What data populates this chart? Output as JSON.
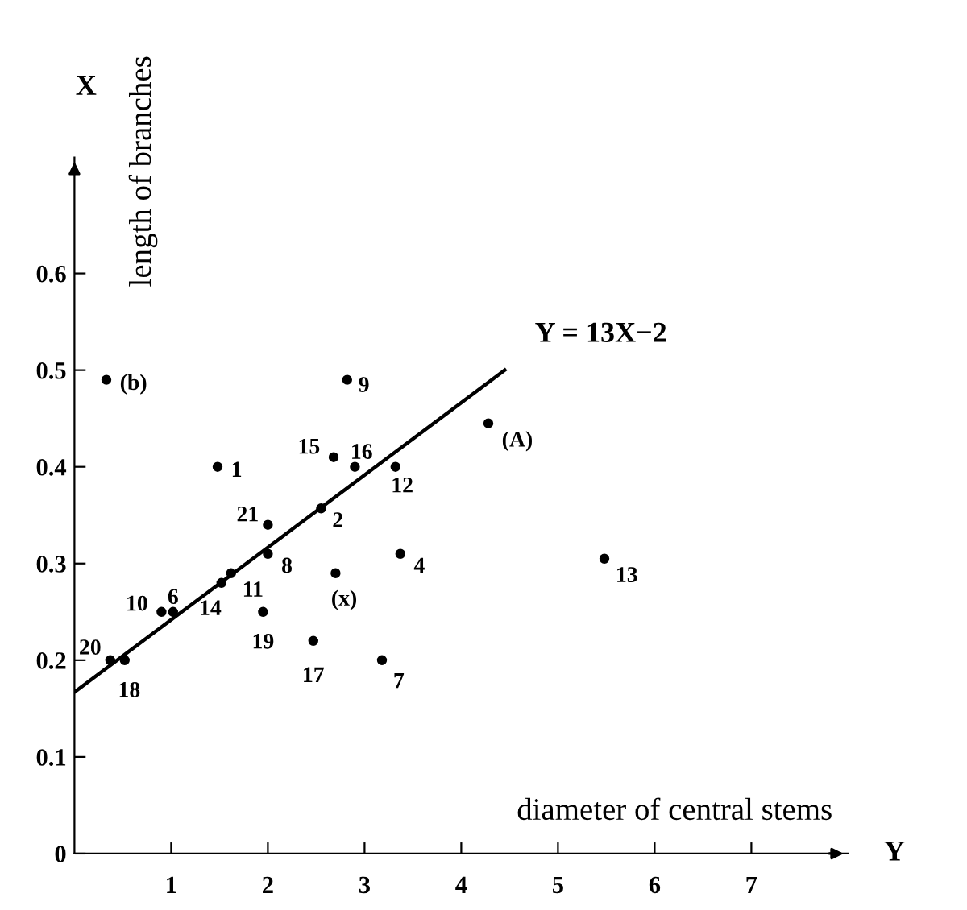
{
  "chart_data": {
    "type": "scatter",
    "xlabel": "diameter of central stems",
    "ylabel": "length of branches",
    "series": [
      {
        "color": "#000000",
        "marker": "circle",
        "x": [
          0.33,
          2.82,
          2.68,
          2.9,
          3.32,
          1.48,
          4.28,
          2.55,
          2.0,
          2.0,
          1.62,
          1.52,
          2.7,
          3.37,
          0.9,
          1.02,
          1.95,
          2.47,
          3.18,
          0.37,
          0.52,
          5.48
        ],
        "values": [
          0.49,
          0.49,
          0.41,
          0.4,
          0.4,
          0.4,
          0.445,
          0.357,
          0.34,
          0.31,
          0.29,
          0.28,
          0.29,
          0.31,
          0.25,
          0.25,
          0.25,
          0.22,
          0.2,
          0.2,
          0.2,
          0.305
        ]
      },
      {
        "type": "line",
        "color": "#000000",
        "line_style": "solid",
        "marker": "none",
        "x": [
          0,
          4.45
        ],
        "values": [
          0.167,
          0.5
        ]
      }
    ],
    "annotations": [
      {
        "text": "(b)",
        "x": 0.33,
        "y": 0.49
      },
      {
        "text": "9",
        "x": 2.82,
        "y": 0.49
      },
      {
        "text": "15",
        "x": 2.68,
        "y": 0.41
      },
      {
        "text": "16",
        "x": 2.9,
        "y": 0.4
      },
      {
        "text": "12",
        "x": 3.32,
        "y": 0.4
      },
      {
        "text": "1",
        "x": 1.48,
        "y": 0.4
      },
      {
        "text": "(A)",
        "x": 4.28,
        "y": 0.445
      },
      {
        "text": "2",
        "x": 2.55,
        "y": 0.357
      },
      {
        "text": "21",
        "x": 2.0,
        "y": 0.34
      },
      {
        "text": "8",
        "x": 2.0,
        "y": 0.31
      },
      {
        "text": "11",
        "x": 1.62,
        "y": 0.29
      },
      {
        "text": "14",
        "x": 1.52,
        "y": 0.28
      },
      {
        "text": "(x)",
        "x": 2.7,
        "y": 0.29
      },
      {
        "text": "4",
        "x": 3.37,
        "y": 0.31
      },
      {
        "text": "10",
        "x": 0.9,
        "y": 0.25
      },
      {
        "text": "6",
        "x": 1.02,
        "y": 0.25
      },
      {
        "text": "19",
        "x": 1.95,
        "y": 0.25
      },
      {
        "text": "17",
        "x": 2.47,
        "y": 0.22
      },
      {
        "text": "7",
        "x": 3.18,
        "y": 0.2
      },
      {
        "text": "20",
        "x": 0.37,
        "y": 0.2
      },
      {
        "text": "18",
        "x": 0.52,
        "y": 0.2
      },
      {
        "text": "13",
        "x": 5.48,
        "y": 0.305
      },
      "Y = 13X−2",
      "X",
      "Y"
    ],
    "xlim": [
      0,
      8
    ],
    "ylim": [
      0,
      0.72
    ],
    "xticks": [
      1,
      2,
      3,
      4,
      5,
      6,
      7
    ],
    "yticks": [
      0,
      0.1,
      0.2,
      0.3,
      0.4,
      0.5,
      0.6
    ],
    "grid": false
  }
}
